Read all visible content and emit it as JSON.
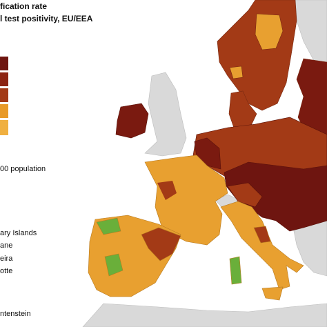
{
  "legend": {
    "title_lines": [
      "fication rate",
      "l test positivity, EU/EEA"
    ],
    "population_note": "00 population",
    "regions": [
      "ary Islands",
      "ane",
      "eira",
      "otte"
    ],
    "footer": "ntenstein"
  }
}
